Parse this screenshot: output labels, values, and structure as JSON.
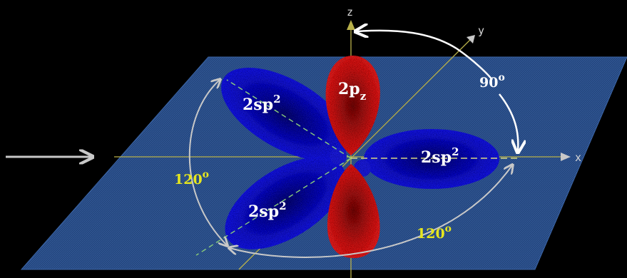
{
  "axes": {
    "x": "x",
    "y": "y",
    "z": "z"
  },
  "orbitals": {
    "sp2_upper_left": {
      "main": "2sp",
      "sup": "2"
    },
    "sp2_right": {
      "main": "2sp",
      "sup": "2"
    },
    "sp2_lower_left": {
      "main": "2sp",
      "sup": "2"
    },
    "pz": {
      "main": "2p",
      "sub": "z"
    }
  },
  "angles": {
    "right_angle": {
      "value": "90",
      "unit": "o"
    },
    "left_angle": {
      "value": "120",
      "unit": "o"
    },
    "bottom_angle": {
      "value": "120",
      "unit": "o"
    }
  },
  "colors": {
    "plane": "#2a4e86",
    "sp2_lobe": "#1414d8",
    "pz_lobe": "#d81414",
    "angle_text": "#e6e61e",
    "label_text": "#ffffff"
  }
}
